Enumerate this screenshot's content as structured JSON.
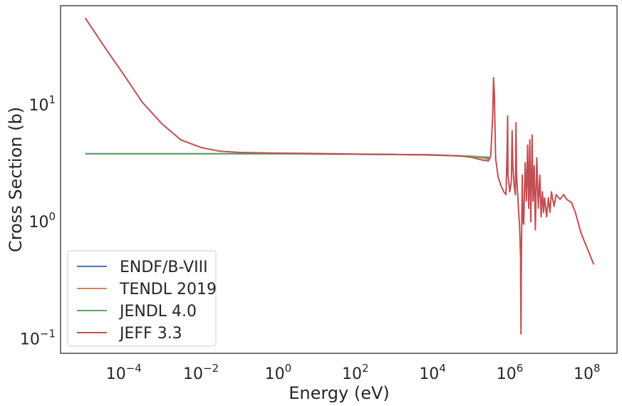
{
  "chart_data": {
    "type": "line",
    "title": "",
    "xlabel": "Energy (eV)",
    "ylabel": "Cross Section (b)",
    "x_scale": "log",
    "y_scale": "log",
    "xlim": [
      2.3e-06,
      600000000.0
    ],
    "ylim": [
      0.075,
      70
    ],
    "grid": false,
    "legend_position": "lower-left",
    "x_ticks": [
      {
        "base": "10",
        "exp": "−4",
        "value": 0.0001
      },
      {
        "base": "10",
        "exp": "−2",
        "value": 0.01
      },
      {
        "base": "10",
        "exp": "0",
        "value": 1
      },
      {
        "base": "10",
        "exp": "2",
        "value": 100
      },
      {
        "base": "10",
        "exp": "4",
        "value": 10000.0
      },
      {
        "base": "10",
        "exp": "6",
        "value": 1000000.0
      },
      {
        "base": "10",
        "exp": "8",
        "value": 100000000.0
      }
    ],
    "y_ticks": [
      {
        "base": "10",
        "exp": "−1",
        "value": 0.1
      },
      {
        "base": "10",
        "exp": "0",
        "value": 1
      },
      {
        "base": "10",
        "exp": "1",
        "value": 10
      }
    ],
    "series": [
      {
        "name": "ENDF/B-VIII",
        "color": "#4c72b0",
        "points": [
          [
            1e-05,
            3.8
          ],
          [
            0.001,
            3.8
          ],
          [
            0.1,
            3.8
          ],
          [
            1,
            3.8
          ],
          [
            100,
            3.77
          ],
          [
            10000.0,
            3.72
          ],
          [
            100000.0,
            3.6
          ],
          [
            200000.0,
            3.55
          ],
          [
            300000.0,
            3.5
          ]
        ]
      },
      {
        "name": "TENDL 2019",
        "color": "#dd8452",
        "points": [
          [
            1e-05,
            3.8
          ],
          [
            0.001,
            3.8
          ],
          [
            0.1,
            3.8
          ],
          [
            1,
            3.8
          ],
          [
            100,
            3.77
          ],
          [
            10000.0,
            3.72
          ],
          [
            100000.0,
            3.6
          ],
          [
            200000.0,
            3.5
          ],
          [
            280000.0,
            3.4
          ],
          [
            300000.0,
            3.5
          ]
        ]
      },
      {
        "name": "JENDL 4.0",
        "color": "#55a868",
        "points": [
          [
            1e-05,
            3.8
          ],
          [
            0.001,
            3.8
          ],
          [
            0.1,
            3.8
          ],
          [
            1,
            3.8
          ],
          [
            100,
            3.77
          ],
          [
            10000.0,
            3.72
          ],
          [
            100000.0,
            3.62
          ],
          [
            200000.0,
            3.58
          ],
          [
            300000.0,
            3.55
          ]
        ]
      },
      {
        "name": "JEFF 3.3",
        "color": "#c44e52",
        "points": [
          [
            1e-05,
            55
          ],
          [
            3e-05,
            32
          ],
          [
            0.0001,
            18
          ],
          [
            0.0003,
            10.5
          ],
          [
            0.001,
            6.8
          ],
          [
            0.003,
            5.0
          ],
          [
            0.01,
            4.3
          ],
          [
            0.03,
            4.0
          ],
          [
            0.1,
            3.9
          ],
          [
            1,
            3.85
          ],
          [
            10,
            3.82
          ],
          [
            100,
            3.78
          ],
          [
            1000.0,
            3.75
          ],
          [
            10000.0,
            3.7
          ],
          [
            50000.0,
            3.65
          ],
          [
            100000.0,
            3.55
          ],
          [
            200000.0,
            3.35
          ],
          [
            280000.0,
            3.3
          ],
          [
            320000.0,
            3.6
          ],
          [
            360000.0,
            8
          ],
          [
            380000.0,
            17
          ],
          [
            400000.0,
            12
          ],
          [
            430000.0,
            3.5
          ],
          [
            500000.0,
            2.4
          ],
          [
            600000.0,
            2.0
          ],
          [
            700000.0,
            1.8
          ],
          [
            800000.0,
            1.7
          ],
          [
            850000.0,
            4
          ],
          [
            880000.0,
            8
          ],
          [
            900000.0,
            2.5
          ],
          [
            1000000.0,
            1.8
          ],
          [
            1100000.0,
            2.2
          ],
          [
            1150000.0,
            6
          ],
          [
            1200000.0,
            3
          ],
          [
            1300000.0,
            2.0
          ],
          [
            1400000.0,
            1.7
          ],
          [
            1450000.0,
            7
          ],
          [
            1500000.0,
            2.5
          ],
          [
            1600000.0,
            1.7
          ],
          [
            1700000.0,
            1.2
          ],
          [
            1800000.0,
            0.9
          ],
          [
            1900000.0,
            0.5
          ],
          [
            1950000.0,
            0.11
          ],
          [
            2000000.0,
            0.5
          ],
          [
            2100000.0,
            2.5
          ],
          [
            2200000.0,
            1.0
          ],
          [
            2300000.0,
            0.95
          ],
          [
            2500000.0,
            3.2
          ],
          [
            2700000.0,
            1.5
          ],
          [
            2900000.0,
            4.5
          ],
          [
            3100000.0,
            1.3
          ],
          [
            3300000.0,
            5
          ],
          [
            3500000.0,
            1.0
          ],
          [
            3800000.0,
            5.5
          ],
          [
            4000000.0,
            1.5
          ],
          [
            4300000.0,
            3
          ],
          [
            4600000.0,
            0.85
          ],
          [
            5000000.0,
            3.5
          ],
          [
            5500000.0,
            1.3
          ],
          [
            6000000.0,
            2.5
          ],
          [
            6500000.0,
            1.1
          ],
          [
            7000000.0,
            1.8
          ],
          [
            7500000.0,
            1.2
          ],
          [
            8000000.0,
            1.6
          ],
          [
            9000000.0,
            1.1
          ],
          [
            10000000.0,
            1.6
          ],
          [
            11000000.0,
            1.2
          ],
          [
            12000000.0,
            1.8
          ],
          [
            14000000.0,
            1.35
          ],
          [
            16000000.0,
            1.7
          ],
          [
            20000000.0,
            1.55
          ],
          [
            25000000.0,
            1.7
          ],
          [
            30000000.0,
            1.55
          ],
          [
            40000000.0,
            1.45
          ],
          [
            50000000.0,
            1.2
          ],
          [
            70000000.0,
            0.8
          ],
          [
            100000000.0,
            0.6
          ],
          [
            150000000.0,
            0.43
          ]
        ]
      }
    ]
  }
}
